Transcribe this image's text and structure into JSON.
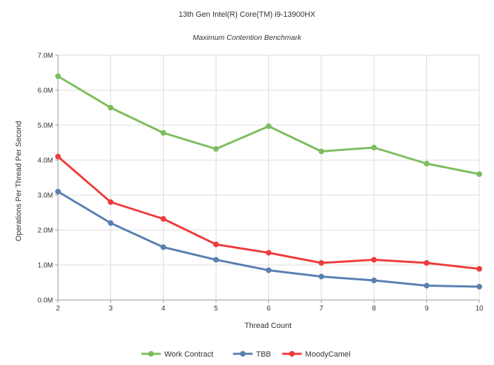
{
  "chart_data": {
    "type": "line",
    "title": "13th Gen Intel(R) Core(TM) i9-13900HX",
    "subtitle": "Maximum Contention Benchmark",
    "xlabel": "Thread Count",
    "ylabel": "Operations Per Thread Per Second",
    "x": [
      2,
      3,
      4,
      5,
      6,
      7,
      8,
      9,
      10
    ],
    "x_tick_labels": [
      "2",
      "3",
      "4",
      "5",
      "6",
      "7",
      "8",
      "9",
      "10"
    ],
    "ylim": [
      0,
      7000000
    ],
    "y_ticks": [
      0,
      1000000,
      2000000,
      3000000,
      4000000,
      5000000,
      6000000,
      7000000
    ],
    "y_tick_labels": [
      "0.0M",
      "1.0M",
      "2.0M",
      "3.0M",
      "4.0M",
      "5.0M",
      "6.0M",
      "7.0M"
    ],
    "grid": true,
    "legend_position": "bottom",
    "series": [
      {
        "name": "Work Contract",
        "color": "#7cbd5e",
        "values": [
          6400000,
          5500000,
          4780000,
          4320000,
          4970000,
          4250000,
          4360000,
          3900000,
          3600000
        ]
      },
      {
        "name": "TBB",
        "color": "#5a7fb0",
        "values": [
          3100000,
          2200000,
          1510000,
          1150000,
          850000,
          670000,
          560000,
          410000,
          380000
        ]
      },
      {
        "name": "MoodyCamel",
        "color": "#ef3b3b",
        "values": [
          4100000,
          2800000,
          2320000,
          1590000,
          1350000,
          1060000,
          1150000,
          1060000,
          890000
        ]
      }
    ]
  },
  "colors": {
    "grid": "#dcdcdc",
    "axis": "#9a9a9a",
    "text": "#333333"
  }
}
